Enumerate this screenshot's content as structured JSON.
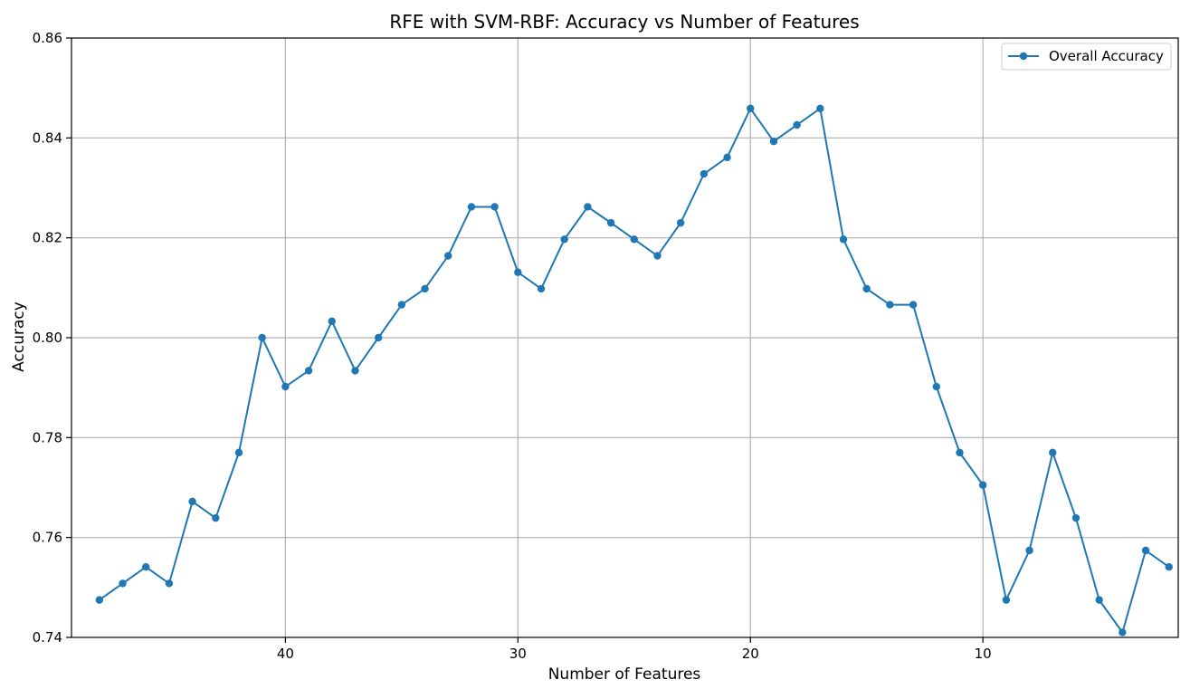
{
  "chart_data": {
    "type": "line",
    "title": "RFE with SVM-RBF: Accuracy vs Number of Features",
    "xlabel": "Number of Features",
    "ylabel": "Accuracy",
    "xlim": [
      49.2,
      1.6
    ],
    "ylim": [
      0.74,
      0.86
    ],
    "x_inverted": true,
    "grid": true,
    "legend_position": "top-right",
    "xticks": [
      40,
      30,
      20,
      10
    ],
    "yticks": [
      0.74,
      0.76,
      0.78,
      0.8,
      0.82,
      0.84,
      0.86
    ],
    "ytick_labels": [
      "0.74",
      "0.76",
      "0.78",
      "0.80",
      "0.82",
      "0.84",
      "0.86"
    ],
    "series": [
      {
        "name": "Overall Accuracy",
        "color": "#1f77b4",
        "marker": "circle",
        "x": [
          48,
          47,
          46,
          45,
          44,
          43,
          42,
          41,
          40,
          39,
          38,
          37,
          36,
          35,
          34,
          33,
          32,
          31,
          30,
          29,
          28,
          27,
          26,
          25,
          24,
          23,
          22,
          21,
          20,
          19,
          18,
          17,
          16,
          15,
          14,
          13,
          12,
          11,
          10,
          9,
          8,
          7,
          6,
          5,
          4,
          3,
          2
        ],
        "y": [
          0.7475,
          0.7508,
          0.7541,
          0.7508,
          0.7672,
          0.7639,
          0.777,
          0.8,
          0.7902,
          0.7934,
          0.8033,
          0.7934,
          0.8,
          0.8066,
          0.8098,
          0.8164,
          0.8262,
          0.8262,
          0.8131,
          0.8098,
          0.8197,
          0.8262,
          0.823,
          0.8197,
          0.8164,
          0.823,
          0.8328,
          0.8361,
          0.8459,
          0.8393,
          0.8426,
          0.8459,
          0.8197,
          0.8098,
          0.8066,
          0.8066,
          0.7902,
          0.777,
          0.7705,
          0.7475,
          0.7574,
          0.777,
          0.7639,
          0.7475,
          0.741,
          0.7574,
          0.7541
        ]
      }
    ]
  }
}
